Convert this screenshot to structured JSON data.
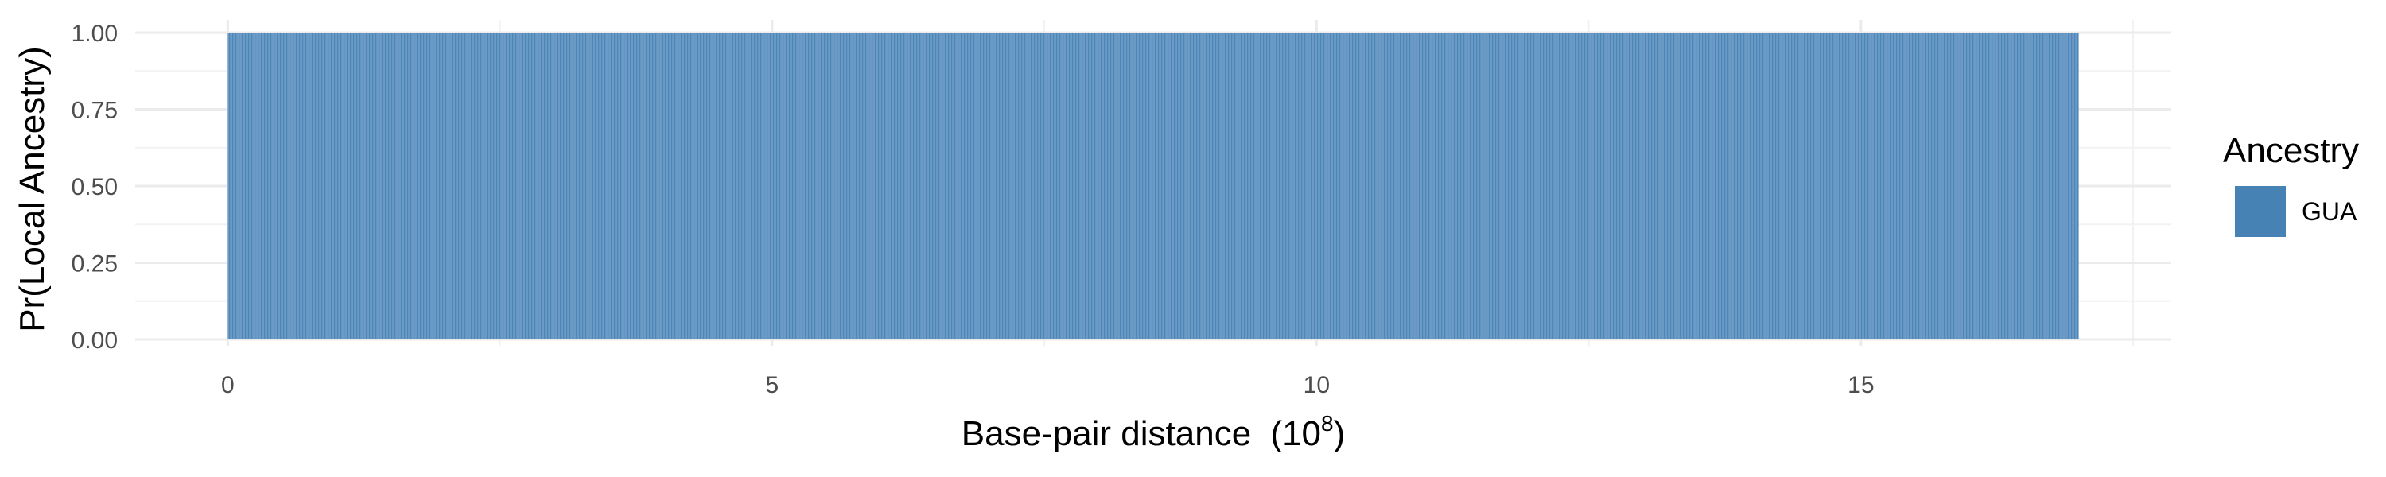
{
  "chart_data": {
    "type": "bar",
    "title": "",
    "xlabel": "Base-pair distance",
    "xlabel_unit_base": "10",
    "xlabel_unit_exponent": "8",
    "ylabel": "Pr(Local Ancestry)",
    "xlim": [
      -0.85,
      17.85
    ],
    "ylim": [
      0,
      1
    ],
    "x_ticks": [
      0,
      5,
      10,
      15
    ],
    "x_tick_labels": [
      "0",
      "5",
      "10",
      "15"
    ],
    "y_ticks": [
      0,
      0.25,
      0.5,
      0.75,
      1.0
    ],
    "y_tick_labels": [
      "0.00",
      "0.25",
      "0.50",
      "0.75",
      "1.00"
    ],
    "grid": true,
    "legend": {
      "title": "Ancestry",
      "position": "right",
      "entries": [
        {
          "name": "GUA",
          "color": "#4682B4"
        }
      ]
    },
    "series": [
      {
        "name": "GUA",
        "color": "#4682B4",
        "x_start": 0,
        "x_end": 17,
        "value": 1.0
      }
    ]
  }
}
